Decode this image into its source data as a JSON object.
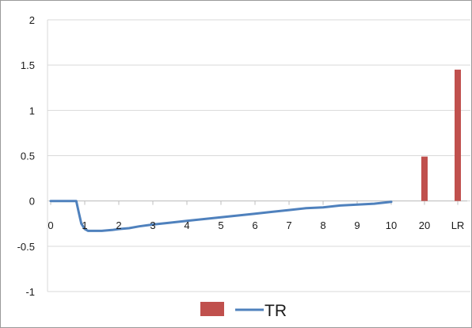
{
  "chart_data": {
    "type": "bar",
    "title": "",
    "xlabel": "",
    "ylabel": "",
    "ylim": [
      -1,
      2
    ],
    "grid": {
      "horizontal": true,
      "vertical": false
    },
    "y_ticks": [
      2,
      1.5,
      1,
      0.5,
      0,
      -0.5,
      -1
    ],
    "y_tick_labels": [
      "2",
      "1.5",
      "1",
      "0.5",
      "0",
      "-0.5",
      "-1"
    ],
    "categories": [
      "0",
      "1",
      "2",
      "3",
      "4",
      "5",
      "6",
      "7",
      "8",
      "9",
      "10",
      "20",
      "LR"
    ],
    "bar_color": "#c0504d",
    "line_color": "#4f81bd",
    "bars": [
      {
        "category": "20",
        "value": 0.49
      },
      {
        "category": "LR",
        "value": 1.45
      }
    ],
    "line": {
      "x": [
        0,
        0.3,
        0.6,
        0.75,
        0.82,
        0.9,
        1.0,
        1.1,
        1.3,
        1.5,
        1.8,
        2.0,
        2.3,
        2.6,
        3.0,
        3.5,
        4.0,
        4.5,
        5.0,
        5.5,
        6.0,
        6.5,
        7.0,
        7.5,
        8.0,
        8.5,
        9.0,
        9.5,
        10.0
      ],
      "y": [
        0.0,
        0.0,
        0.0,
        0.0,
        -0.12,
        -0.25,
        -0.31,
        -0.33,
        -0.33,
        -0.33,
        -0.32,
        -0.31,
        -0.3,
        -0.28,
        -0.26,
        -0.24,
        -0.22,
        -0.2,
        -0.18,
        -0.16,
        -0.14,
        -0.12,
        -0.1,
        -0.08,
        -0.07,
        -0.05,
        -0.04,
        -0.03,
        -0.01
      ]
    },
    "legend": {
      "placement": "bottom",
      "entries": [
        {
          "type": "bar",
          "label": "",
          "color": "#c0504d"
        },
        {
          "type": "line",
          "label": "TR",
          "color": "#4f81bd"
        }
      ]
    }
  }
}
